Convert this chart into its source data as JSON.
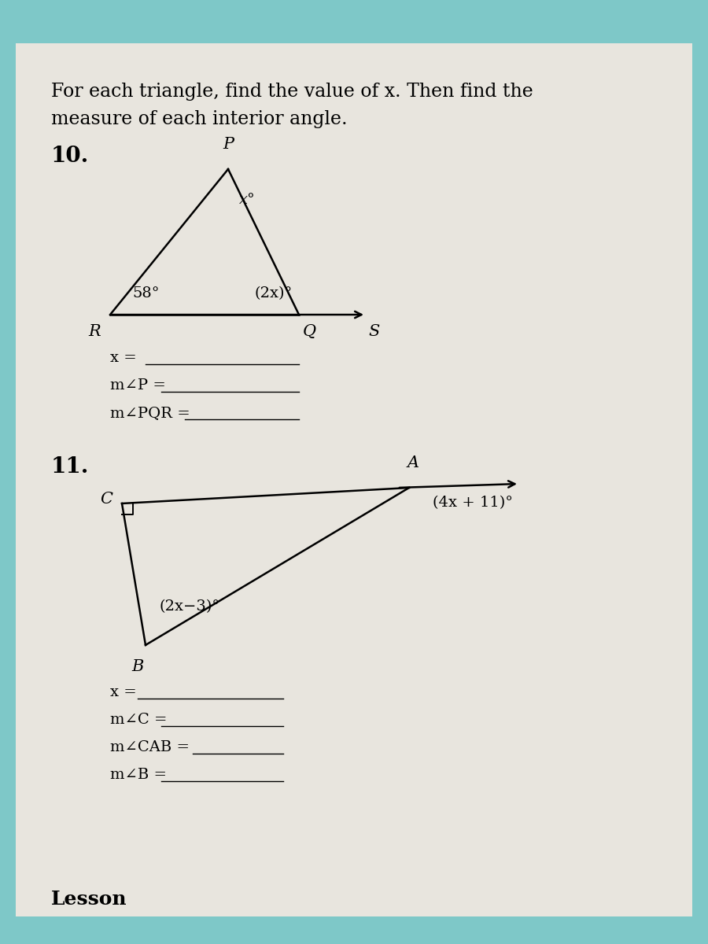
{
  "title_line1": "For each triangle, find the value of x. Then find the",
  "title_line2": "measure of each interior angle.",
  "bg_top_color": "#7ec8c8",
  "bg_paper_color": "#e8e5de",
  "problem10_label": "10.",
  "problem11_label": "11.",
  "tri10": {
    "P_label": "P",
    "R_label": "R",
    "Q_label": "Q",
    "S_label": "S",
    "angle_P_label": "x°",
    "angle_R_label": "58°",
    "angle_Q_label": "(2x)°"
  },
  "tri11": {
    "C_label": "C",
    "B_label": "B",
    "A_label": "A",
    "angle_B_label": "(2x−3)°",
    "angle_A_label": "(4x + 11)°"
  },
  "ans10_x": "x =",
  "ans10_P": "m∠P =",
  "ans10_PQR": "m∠PQR =",
  "ans11_x": "x =",
  "ans11_C": "m∠C =",
  "ans11_CAB": "m∠CAB =",
  "ans11_B": "m∠B =",
  "lesson_label": "Lesson"
}
